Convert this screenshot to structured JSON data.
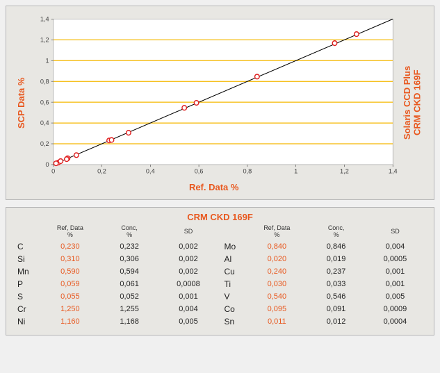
{
  "chart": {
    "type": "scatter",
    "ylabel": "SCP Data %",
    "xlabel": "Ref. Data %",
    "right_label_line1": "Solaris CCD Plus",
    "right_label_line2": "CRM CKD 169F",
    "xlim": [
      0,
      1.4
    ],
    "ylim": [
      0,
      1.4
    ],
    "ticks": [
      0,
      0.2,
      0.4,
      0.6,
      0.8,
      1.0,
      1.2,
      1.4
    ],
    "tick_labels": [
      "0",
      "0,2",
      "0,4",
      "0,6",
      "0,8",
      "1",
      "1,2",
      "1,4"
    ],
    "gridline_color": "#f5b800",
    "gridline_values": [
      0.2,
      0.4,
      0.6,
      0.8,
      1.0,
      1.2
    ],
    "background": "#ffffff",
    "line": {
      "x1": 0,
      "y1": 0,
      "x2": 1.4,
      "y2": 1.4,
      "color": "#000000",
      "width": 1
    },
    "marker": {
      "stroke": "#e02020",
      "fill": "#ffffff",
      "radius": 3.2,
      "stroke_width": 1.4
    },
    "points": [
      {
        "x": 0.23,
        "y": 0.232
      },
      {
        "x": 0.31,
        "y": 0.306
      },
      {
        "x": 0.59,
        "y": 0.594
      },
      {
        "x": 0.059,
        "y": 0.061
      },
      {
        "x": 0.055,
        "y": 0.052
      },
      {
        "x": 1.25,
        "y": 1.255
      },
      {
        "x": 1.16,
        "y": 1.168
      },
      {
        "x": 0.84,
        "y": 0.846
      },
      {
        "x": 0.02,
        "y": 0.019
      },
      {
        "x": 0.24,
        "y": 0.237
      },
      {
        "x": 0.03,
        "y": 0.033
      },
      {
        "x": 0.54,
        "y": 0.546
      },
      {
        "x": 0.095,
        "y": 0.091
      },
      {
        "x": 0.011,
        "y": 0.012
      }
    ]
  },
  "table": {
    "title": "CRM CKD 169F",
    "headers": {
      "ref": "Ref, Data\n%",
      "conc": "Conc,\n%",
      "sd": "SD"
    },
    "colors": {
      "ref": "#e8581f",
      "text": "#222222"
    },
    "rows_left": [
      {
        "elem": "C",
        "ref": "0,230",
        "conc": "0,232",
        "sd": "0,002"
      },
      {
        "elem": "Si",
        "ref": "0,310",
        "conc": "0,306",
        "sd": "0,002"
      },
      {
        "elem": "Mn",
        "ref": "0,590",
        "conc": "0,594",
        "sd": "0,002"
      },
      {
        "elem": "P",
        "ref": "0,059",
        "conc": "0,061",
        "sd": "0,0008"
      },
      {
        "elem": "S",
        "ref": "0,055",
        "conc": "0,052",
        "sd": "0,001"
      },
      {
        "elem": "Cr",
        "ref": "1,250",
        "conc": "1,255",
        "sd": "0,004"
      },
      {
        "elem": "Ni",
        "ref": "1,160",
        "conc": "1,168",
        "sd": "0,005"
      }
    ],
    "rows_right": [
      {
        "elem": "Mo",
        "ref": "0,840",
        "conc": "0,846",
        "sd": "0,004"
      },
      {
        "elem": "Al",
        "ref": "0,020",
        "conc": "0,019",
        "sd": "0,0005"
      },
      {
        "elem": "Cu",
        "ref": "0,240",
        "conc": "0,237",
        "sd": "0,001"
      },
      {
        "elem": "Ti",
        "ref": "0,030",
        "conc": "0,033",
        "sd": "0,001"
      },
      {
        "elem": "V",
        "ref": "0,540",
        "conc": "0,546",
        "sd": "0,005"
      },
      {
        "elem": "Co",
        "ref": "0,095",
        "conc": "0,091",
        "sd": "0,0009"
      },
      {
        "elem": "Sn",
        "ref": "0,011",
        "conc": "0,012",
        "sd": "0,0004"
      }
    ]
  }
}
